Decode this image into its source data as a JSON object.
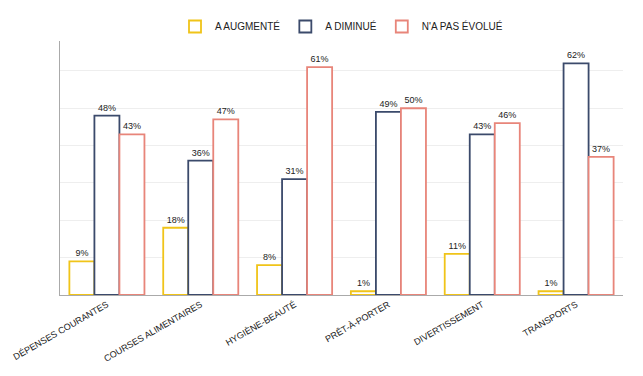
{
  "chart_data": {
    "type": "bar",
    "categories": [
      "DÉPENSES COURANTES",
      "COURSES ALIMENTAIRES",
      "HYGIÈNE-BEAUTÉ",
      "PRÊT-À-PORTER",
      "DIVERTISSEMENT",
      "TRANSPORTS"
    ],
    "series": [
      {
        "name": "A AUGMENTÉ",
        "color": "#f0c419",
        "values": [
          9,
          18,
          8,
          1,
          11,
          1
        ],
        "value_labels": [
          "9%",
          "18%",
          "8%",
          "1%",
          "11%",
          "1%"
        ]
      },
      {
        "name": "A DIMINUÉ",
        "color": "#3b4a6b",
        "values": [
          48,
          36,
          31,
          49,
          43,
          62
        ],
        "value_labels": [
          "48%",
          "36%",
          "31%",
          "49%",
          "43%",
          "62%"
        ]
      },
      {
        "name": "N'A PAS ÉVOLUÉ",
        "color": "#e8857a",
        "values": [
          43,
          47,
          61,
          50,
          46,
          37
        ],
        "value_labels": [
          "43%",
          "47%",
          "61%",
          "50%",
          "46%",
          "37%"
        ]
      }
    ],
    "ylim": [
      0,
      68
    ],
    "yticks": [
      10,
      20,
      30,
      40,
      50,
      60
    ],
    "grid": true,
    "data_labels": true,
    "tick_labels": "x",
    "legend": "top"
  }
}
